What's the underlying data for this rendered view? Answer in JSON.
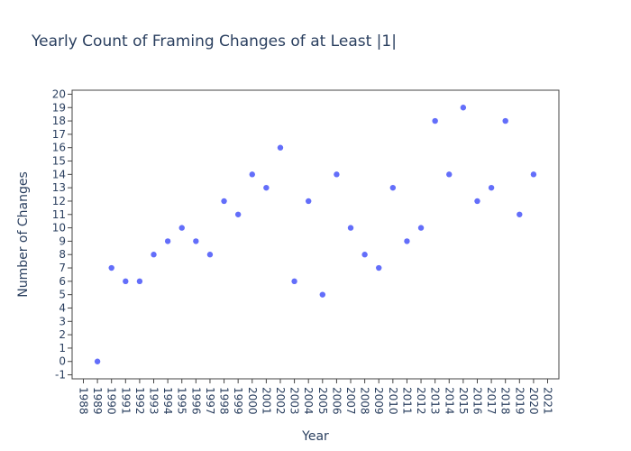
{
  "chart_data": {
    "type": "scatter",
    "title": "Yearly Count of Framing Changes of at Least |1|",
    "xlabel": "Year",
    "ylabel": "Number of Changes",
    "xlim": [
      1987.2,
      2021.8
    ],
    "ylim": [
      -1.3,
      20.3
    ],
    "x_ticks": [
      "1988",
      "1989",
      "1990",
      "1991",
      "1992",
      "1993",
      "1994",
      "1995",
      "1996",
      "1997",
      "1998",
      "1999",
      "2000",
      "2001",
      "2002",
      "2003",
      "2004",
      "2005",
      "2006",
      "2007",
      "2008",
      "2009",
      "2010",
      "2011",
      "2012",
      "2013",
      "2014",
      "2015",
      "2016",
      "2017",
      "2018",
      "2019",
      "2020",
      "2021"
    ],
    "y_ticks": [
      "-1",
      "0",
      "1",
      "2",
      "3",
      "4",
      "5",
      "6",
      "7",
      "8",
      "9",
      "10",
      "11",
      "12",
      "13",
      "14",
      "15",
      "16",
      "17",
      "18",
      "19",
      "20"
    ],
    "series": [
      {
        "x": [
          1989,
          1990,
          1991,
          1992,
          1993,
          1994,
          1995,
          1996,
          1997,
          1998,
          1999,
          2000,
          2001,
          2002,
          2003,
          2004,
          2005,
          2006,
          2007,
          2008,
          2009,
          2010,
          2011,
          2012,
          2013,
          2014,
          2015,
          2016,
          2017,
          2018,
          2019,
          2020
        ],
        "values": [
          0,
          7,
          6,
          6,
          8,
          9,
          10,
          9,
          8,
          12,
          11,
          14,
          13,
          16,
          6,
          12,
          5,
          14,
          10,
          8,
          7,
          13,
          9,
          10,
          18,
          14,
          19,
          12,
          13,
          18,
          11,
          14
        ]
      }
    ],
    "marker_color": "#636efa",
    "grid": false,
    "legend": "none"
  }
}
